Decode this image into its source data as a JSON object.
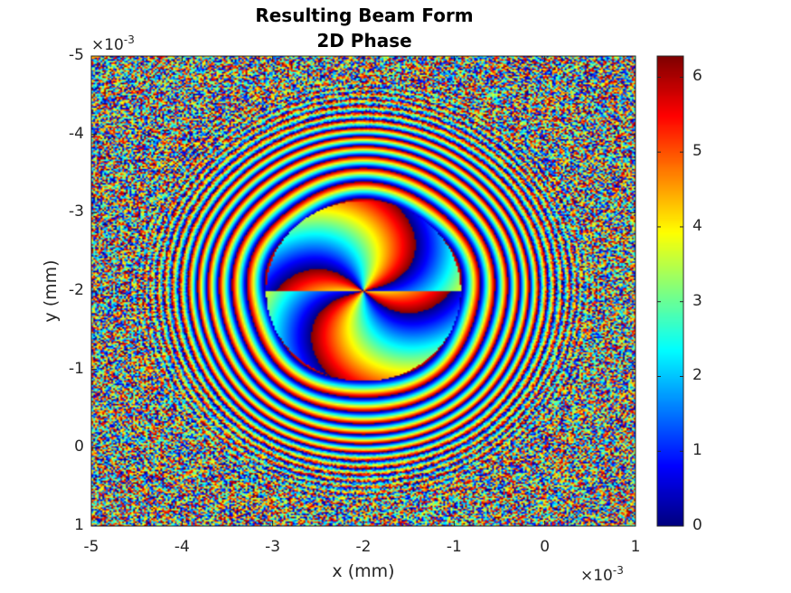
{
  "chart_data": {
    "type": "heatmap",
    "title": "Resulting Beam Form",
    "subtitle": "2D Phase",
    "xlabel": "x (mm)",
    "ylabel": "y (mm)",
    "x_range": [
      -0.005,
      0.001
    ],
    "y_range": [
      -0.005,
      0.001
    ],
    "y_direction": "reversed",
    "x_ticks": [
      -5,
      -4,
      -3,
      -2,
      -1,
      0,
      1
    ],
    "y_ticks": [
      1,
      0,
      -1,
      -2,
      -3,
      -4,
      -5
    ],
    "x_tick_labels": [
      "-5",
      "-4",
      "-3",
      "-2",
      "-1",
      "0",
      "1"
    ],
    "y_tick_labels": [
      "1",
      "0",
      "-1",
      "-2",
      "-3",
      "-4",
      "-5"
    ],
    "x_multiplier": {
      "base": "×10",
      "exp": "-3"
    },
    "y_multiplier": {
      "base": "×10",
      "exp": "-3"
    },
    "beam_center": [
      -0.002,
      -0.002
    ],
    "colorbar": {
      "colormap": "jet",
      "range": [
        0,
        6.2832
      ],
      "ticks": [
        0,
        1,
        2,
        3,
        4,
        5,
        6
      ],
      "tick_labels": [
        "0",
        "1",
        "2",
        "3",
        "4",
        "5",
        "6"
      ]
    }
  }
}
